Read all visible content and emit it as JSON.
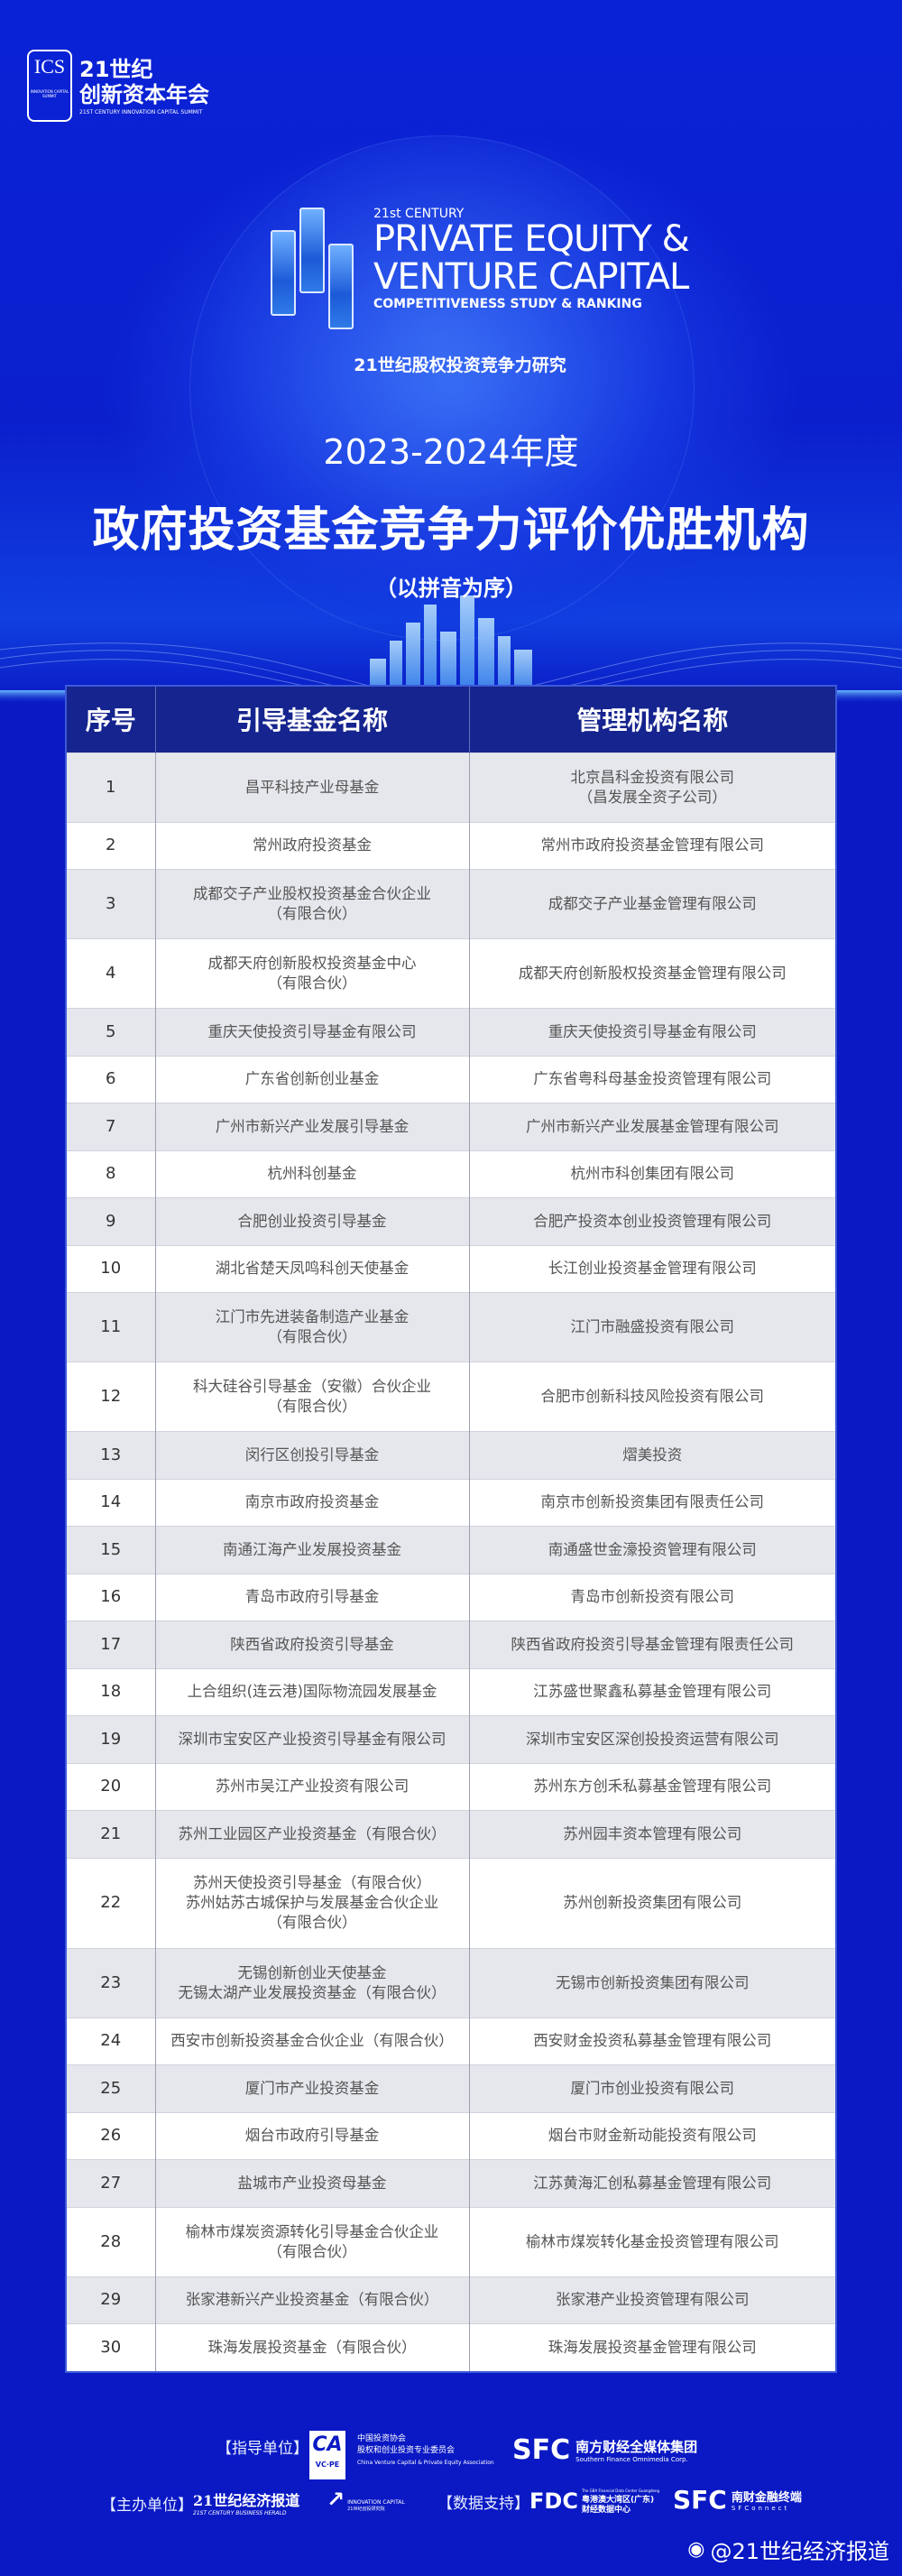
{
  "header": {
    "ics_logo": {
      "mark": "ICS",
      "mark_sub": "INNOVATION CAPITAL SUMMIT",
      "line1": "21世纪",
      "line2": "创新资本年会",
      "line3": "21ST CENTURY INNOVATION CAPITAL SUMMIT"
    },
    "pe_logo": {
      "small": "21st CENTURY",
      "line1": "PRIVATE EQUITY &",
      "line2": "VENTURE CAPITAL",
      "line3": "COMPETITIVENESS STUDY & RANKING",
      "cn": "21世纪股权投资竞争力研究"
    },
    "year": "2023-2024年度",
    "title": "政府投资基金竞争力评价优胜机构",
    "subtitle": "（以拼音为序）"
  },
  "table": {
    "columns": [
      "序号",
      "引导基金名称",
      "管理机构名称"
    ],
    "rows": [
      {
        "no": "1",
        "fund": "昌平科技产业母基金",
        "manager": "北京昌科金投资有限公司\n（昌发展全资子公司）"
      },
      {
        "no": "2",
        "fund": "常州政府投资基金",
        "manager": "常州市政府投资基金管理有限公司"
      },
      {
        "no": "3",
        "fund": "成都交子产业股权投资基金合伙企业\n（有限合伙）",
        "manager": "成都交子产业基金管理有限公司"
      },
      {
        "no": "4",
        "fund": "成都天府创新股权投资基金中心\n（有限合伙）",
        "manager": "成都天府创新股权投资基金管理有限公司"
      },
      {
        "no": "5",
        "fund": "重庆天使投资引导基金有限公司",
        "manager": "重庆天使投资引导基金有限公司"
      },
      {
        "no": "6",
        "fund": "广东省创新创业基金",
        "manager": "广东省粤科母基金投资管理有限公司"
      },
      {
        "no": "7",
        "fund": "广州市新兴产业发展引导基金",
        "manager": "广州市新兴产业发展基金管理有限公司"
      },
      {
        "no": "8",
        "fund": "杭州科创基金",
        "manager": "杭州市科创集团有限公司"
      },
      {
        "no": "9",
        "fund": "合肥创业投资引导基金",
        "manager": "合肥产投资本创业投资管理有限公司"
      },
      {
        "no": "10",
        "fund": "湖北省楚天凤鸣科创天使基金",
        "manager": "长江创业投资基金管理有限公司"
      },
      {
        "no": "11",
        "fund": "江门市先进装备制造产业基金\n（有限合伙）",
        "manager": "江门市融盛投资有限公司"
      },
      {
        "no": "12",
        "fund": "科大硅谷引导基金（安徽）合伙企业\n（有限合伙）",
        "manager": "合肥市创新科技风险投资有限公司"
      },
      {
        "no": "13",
        "fund": "闵行区创投引导基金",
        "manager": "熠美投资"
      },
      {
        "no": "14",
        "fund": "南京市政府投资基金",
        "manager": "南京市创新投资集团有限责任公司"
      },
      {
        "no": "15",
        "fund": "南通江海产业发展投资基金",
        "manager": "南通盛世金濠投资管理有限公司"
      },
      {
        "no": "16",
        "fund": "青岛市政府引导基金",
        "manager": "青岛市创新投资有限公司"
      },
      {
        "no": "17",
        "fund": "陕西省政府投资引导基金",
        "manager": "陕西省政府投资引导基金管理有限责任公司"
      },
      {
        "no": "18",
        "fund": "上合组织(连云港)国际物流园发展基金",
        "manager": "江苏盛世聚鑫私募基金管理有限公司"
      },
      {
        "no": "19",
        "fund": "深圳市宝安区产业投资引导基金有限公司",
        "manager": "深圳市宝安区深创投投资运营有限公司"
      },
      {
        "no": "20",
        "fund": "苏州市吴江产业投资有限公司",
        "manager": "苏州东方创禾私募基金管理有限公司"
      },
      {
        "no": "21",
        "fund": "苏州工业园区产业投资基金（有限合伙）",
        "manager": "苏州园丰资本管理有限公司"
      },
      {
        "no": "22",
        "fund": "苏州天使投资引导基金（有限合伙）\n苏州姑苏古城保护与发展基金合伙企业\n（有限合伙）",
        "manager": "苏州创新投资集团有限公司"
      },
      {
        "no": "23",
        "fund": "无锡创新创业天使基金\n无锡太湖产业发展投资基金（有限合伙）",
        "manager": "无锡市创新投资集团有限公司"
      },
      {
        "no": "24",
        "fund": "西安市创新投资基金合伙企业（有限合伙）",
        "manager": "西安财金投资私募基金管理有限公司"
      },
      {
        "no": "25",
        "fund": "厦门市产业投资基金",
        "manager": "厦门市创业投资有限公司"
      },
      {
        "no": "26",
        "fund": "烟台市政府引导基金",
        "manager": "烟台市财金新动能投资有限公司"
      },
      {
        "no": "27",
        "fund": "盐城市产业投资母基金",
        "manager": "江苏黄海汇创私募基金管理有限公司"
      },
      {
        "no": "28",
        "fund": "榆林市煤炭资源转化引导基金合伙企业\n（有限合伙）",
        "manager": "榆林市煤炭转化基金投资管理有限公司"
      },
      {
        "no": "29",
        "fund": "张家港新兴产业投资基金（有限合伙）",
        "manager": "张家港产业投资管理有限公司"
      },
      {
        "no": "30",
        "fund": "珠海发展投资基金（有限合伙）",
        "manager": "珠海发展投资基金管理有限公司"
      }
    ]
  },
  "footer": {
    "guide_label": "【指导单位】",
    "host_label": "【主办单位】",
    "data_label": "【数据支持】",
    "ca_logo": {
      "mark": "CA",
      "sub": "VC·PE",
      "line1": "中国投资协会",
      "line2": "股权和创业投资专业委员会",
      "line3": "China Venture Capital & Private Equity Association"
    },
    "sfc_group": {
      "mark": "SFC",
      "cn": "南方财经全媒体集团",
      "en": "Southern Finance Omnimedia Corp."
    },
    "herald": {
      "cn": "21世纪经济报道",
      "en": "21ST CENTURY BUSINESS HERALD"
    },
    "innovation_capital": {
      "en": "INNOVATION CAPITAL",
      "cn": "21世纪创投研究院"
    },
    "fdc": {
      "mark": "FDC",
      "line0": "The GBA Financial Data Center Guangdong",
      "line1": "粤港澳大湾区(广东)",
      "line2": "财经数据中心"
    },
    "sfc_connect": {
      "mark": "SFC",
      "cn": "南财金融终端",
      "en": "SFConnect"
    },
    "watermark": "@21世纪经济报道"
  },
  "colors": {
    "background": "#0a19c4",
    "header_row": "#15248e",
    "row_alt": "#e6e7ec",
    "text": "#555555"
  }
}
